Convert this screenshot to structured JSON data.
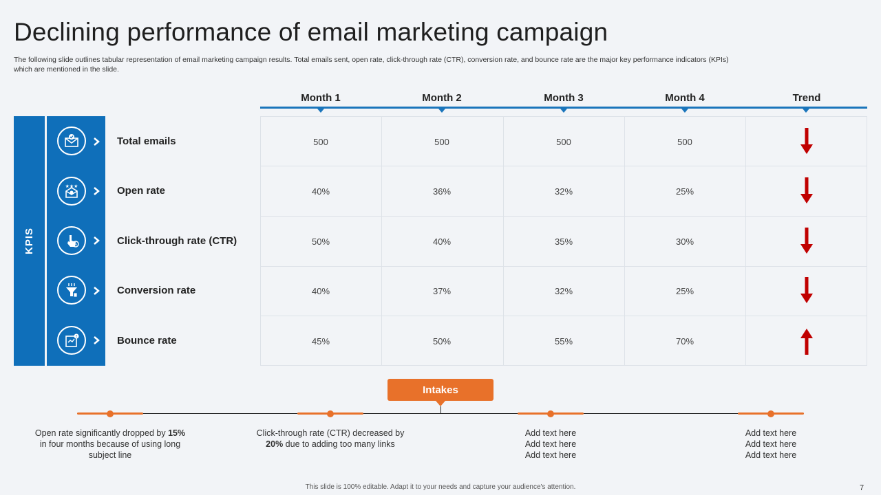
{
  "slide": {
    "title": "Declining performance of email marketing campaign",
    "subtitle": "The following slide outlines tabular representation of email marketing campaign results. Total emails sent, open rate, click-through rate (CTR), conversion rate, and bounce rate are the major key performance indicators (KPIs) which are mentioned in the slide.",
    "kpis_label": "KPIS",
    "footer": "This slide is 100% editable. Adapt it to your needs and capture your audience's attention.",
    "page_number": "7"
  },
  "table": {
    "headers": [
      "Month 1",
      "Month 2",
      "Month 3",
      "Month 4",
      "Trend"
    ],
    "rows": [
      {
        "label": "Total emails",
        "icon": "email-check-icon",
        "values": [
          "500",
          "500",
          "500",
          "500"
        ],
        "trend": "down"
      },
      {
        "label": "Open rate",
        "icon": "open-envelope-stars-icon",
        "values": [
          "40%",
          "36%",
          "32%",
          "25%"
        ],
        "trend": "down"
      },
      {
        "label": "Click-through rate (CTR)",
        "icon": "hand-click-percent-icon",
        "values": [
          "50%",
          "40%",
          "35%",
          "30%"
        ],
        "trend": "down"
      },
      {
        "label": "Conversion rate",
        "icon": "funnel-icon",
        "values": [
          "40%",
          "37%",
          "32%",
          "25%"
        ],
        "trend": "down"
      },
      {
        "label": "Bounce rate",
        "icon": "bounce-chart-icon",
        "values": [
          "45%",
          "50%",
          "55%",
          "70%"
        ],
        "trend": "up"
      }
    ]
  },
  "intakes": {
    "label": "Intakes",
    "notes": [
      {
        "pre": "Open rate significantly dropped by ",
        "bold": "15%",
        "post": " in four months because of using long subject line"
      },
      {
        "pre": "Click-through rate (CTR) decreased by ",
        "bold": "20%",
        "post": " due to adding too many links"
      },
      {
        "lines": [
          "Add text here",
          "Add text here",
          "Add text here"
        ]
      },
      {
        "lines": [
          "Add text here",
          "Add text here",
          "Add text here"
        ]
      }
    ]
  },
  "colors": {
    "primary_blue": "#0f6fba",
    "accent_orange": "#e8712a",
    "trend_red": "#c00000"
  }
}
